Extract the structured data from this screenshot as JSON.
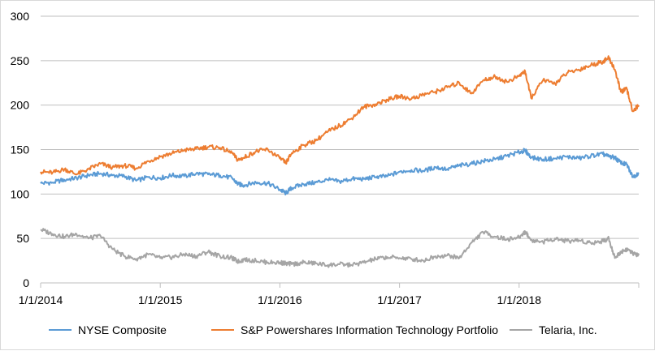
{
  "chart_data": {
    "type": "line",
    "title": "",
    "xlabel": "",
    "ylabel": "",
    "ylim": [
      0,
      300
    ],
    "y_ticks": [
      "0",
      "50",
      "100",
      "150",
      "200",
      "250",
      "300"
    ],
    "x_ticks": [
      "1/1/2014",
      "1/1/2015",
      "1/1/2016",
      "1/1/2017",
      "1/1/2018",
      "1/1/2019"
    ],
    "x_tick_labels": [
      "1/1/2014",
      "1/1/2015",
      "1/1/2016",
      "1/1/2017",
      "1/1/2018",
      ""
    ],
    "x_start": "1/1/2014",
    "x_end": "1/1/2019",
    "grid": "horizontal",
    "legend_position": "bottom",
    "series": [
      {
        "name": "NYSE Composite",
        "color": "#5b9bd5",
        "x": [
          2014.0,
          2014.1,
          2014.2,
          2014.3,
          2014.4,
          2014.5,
          2014.6,
          2014.7,
          2014.8,
          2014.9,
          2015.0,
          2015.1,
          2015.2,
          2015.3,
          2015.4,
          2015.5,
          2015.6,
          2015.65,
          2015.7,
          2015.8,
          2015.9,
          2016.0,
          2016.05,
          2016.1,
          2016.2,
          2016.3,
          2016.4,
          2016.5,
          2016.6,
          2016.7,
          2016.8,
          2016.9,
          2017.0,
          2017.1,
          2017.2,
          2017.3,
          2017.4,
          2017.5,
          2017.6,
          2017.7,
          2017.8,
          2017.9,
          2018.0,
          2018.05,
          2018.1,
          2018.2,
          2018.3,
          2018.4,
          2018.5,
          2018.6,
          2018.7,
          2018.75,
          2018.8,
          2018.85,
          2018.9,
          2018.95,
          2019.0
        ],
        "values": [
          112,
          113,
          116,
          118,
          121,
          123,
          121,
          120,
          115,
          119,
          118,
          121,
          120,
          123,
          122,
          121,
          118,
          111,
          110,
          113,
          112,
          105,
          101,
          107,
          111,
          113,
          116,
          114,
          117,
          117,
          119,
          120,
          125,
          127,
          126,
          130,
          128,
          132,
          134,
          137,
          139,
          143,
          147,
          149,
          141,
          139,
          140,
          142,
          140,
          143,
          145,
          142,
          141,
          135,
          133,
          119,
          124
        ]
      },
      {
        "name": "S&P Powershares Information Technology Portfolio",
        "color": "#ed7d31",
        "x": [
          2014.0,
          2014.1,
          2014.2,
          2014.3,
          2014.4,
          2014.5,
          2014.6,
          2014.7,
          2014.8,
          2014.9,
          2015.0,
          2015.1,
          2015.2,
          2015.3,
          2015.4,
          2015.5,
          2015.6,
          2015.65,
          2015.7,
          2015.8,
          2015.9,
          2016.0,
          2016.05,
          2016.1,
          2016.2,
          2016.3,
          2016.4,
          2016.5,
          2016.6,
          2016.7,
          2016.8,
          2016.9,
          2017.0,
          2017.1,
          2017.2,
          2017.3,
          2017.4,
          2017.5,
          2017.6,
          2017.7,
          2017.8,
          2017.9,
          2018.0,
          2018.05,
          2018.1,
          2018.2,
          2018.3,
          2018.4,
          2018.5,
          2018.6,
          2018.7,
          2018.75,
          2018.8,
          2018.85,
          2018.9,
          2018.95,
          2019.0
        ],
        "values": [
          125,
          124,
          128,
          122,
          128,
          134,
          130,
          132,
          129,
          137,
          142,
          146,
          149,
          151,
          153,
          152,
          146,
          138,
          141,
          148,
          150,
          140,
          135,
          146,
          155,
          160,
          170,
          177,
          185,
          198,
          201,
          206,
          210,
          207,
          212,
          215,
          220,
          225,
          213,
          228,
          232,
          226,
          233,
          238,
          208,
          228,
          224,
          236,
          240,
          245,
          249,
          253,
          240,
          215,
          218,
          193,
          200
        ]
      },
      {
        "name": "Telaria, Inc.",
        "color": "#a5a5a5",
        "x": [
          2014.0,
          2014.1,
          2014.2,
          2014.3,
          2014.4,
          2014.5,
          2014.6,
          2014.7,
          2014.8,
          2014.9,
          2015.0,
          2015.1,
          2015.2,
          2015.3,
          2015.4,
          2015.5,
          2015.6,
          2015.65,
          2015.7,
          2015.8,
          2015.9,
          2016.0,
          2016.05,
          2016.1,
          2016.2,
          2016.3,
          2016.4,
          2016.5,
          2016.6,
          2016.7,
          2016.8,
          2016.9,
          2017.0,
          2017.1,
          2017.2,
          2017.3,
          2017.4,
          2017.5,
          2017.6,
          2017.7,
          2017.8,
          2017.9,
          2018.0,
          2018.05,
          2018.1,
          2018.2,
          2018.3,
          2018.4,
          2018.5,
          2018.6,
          2018.7,
          2018.75,
          2018.8,
          2018.85,
          2018.9,
          2018.95,
          2019.0
        ],
        "values": [
          60,
          55,
          52,
          55,
          50,
          53,
          38,
          30,
          27,
          32,
          28,
          29,
          32,
          30,
          35,
          30,
          28,
          24,
          26,
          25,
          23,
          23,
          22,
          21,
          23,
          22,
          20,
          21,
          20,
          23,
          27,
          29,
          28,
          27,
          25,
          30,
          31,
          28,
          45,
          57,
          52,
          49,
          51,
          58,
          48,
          46,
          50,
          47,
          48,
          45,
          47,
          50,
          28,
          35,
          38,
          33,
          31
        ]
      }
    ]
  }
}
